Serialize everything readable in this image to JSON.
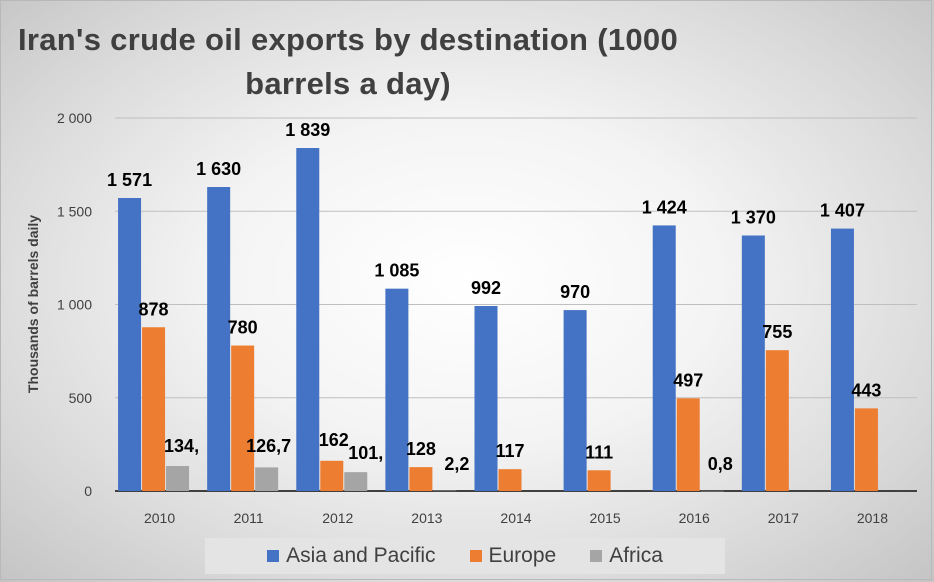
{
  "chart_data": {
    "type": "bar",
    "title": "Iran's crude oil exports by destination (1000 barrels a day)",
    "ylabel": "Thousands of barrels daily",
    "xlabel": "",
    "ylim": [
      0,
      2000
    ],
    "yticks": [
      0,
      500,
      1000,
      1500,
      2000
    ],
    "ytick_labels": [
      "0",
      "500",
      "1 000",
      "1 500",
      "2 000"
    ],
    "categories": [
      "2010",
      "2011",
      "2012",
      "2013",
      "2014",
      "2015",
      "2016",
      "2017",
      "2018"
    ],
    "series": [
      {
        "name": "Asia and Pacific",
        "color": "#4472C4",
        "values": [
          1571,
          1630,
          1839,
          1085,
          992,
          970,
          1424,
          1370,
          1407
        ],
        "labels": [
          "1 571",
          "1 630",
          "1 839",
          "1 085",
          "992",
          "970",
          "1 424",
          "1 370",
          "1 407"
        ]
      },
      {
        "name": "Europe",
        "color": "#ED7D31",
        "values": [
          878,
          780,
          162,
          128,
          117,
          111,
          497,
          755,
          443
        ],
        "labels": [
          "878",
          "780",
          "162",
          "128",
          "117",
          "111",
          "497",
          "755",
          "443"
        ]
      },
      {
        "name": "Africa",
        "color": "#A5A5A5",
        "values": [
          134,
          126.7,
          101,
          2.2,
          null,
          null,
          0.8,
          null,
          null
        ],
        "labels": [
          "134,",
          "126,7",
          "101,",
          "2,2",
          null,
          null,
          "0,8",
          null,
          null
        ]
      }
    ],
    "grid": true,
    "legend": "bottom"
  }
}
